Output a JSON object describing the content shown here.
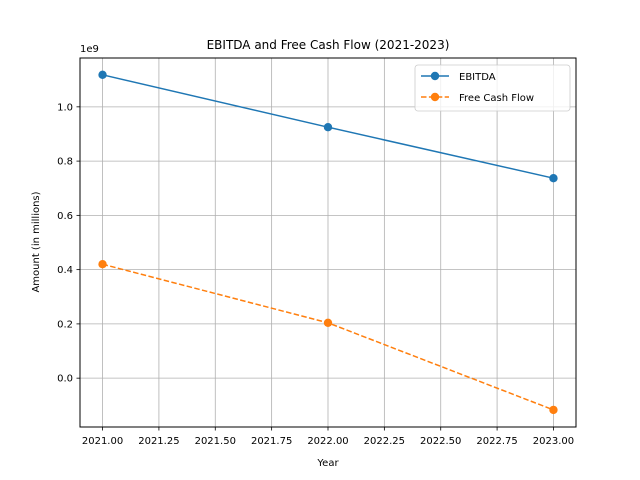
{
  "chart_data": {
    "type": "line",
    "title": "EBITDA and Free Cash Flow (2021-2023)",
    "xlabel": "Year",
    "ylabel": "Amount (in millions)",
    "offset_label": "1e9",
    "x": [
      2021,
      2022,
      2023
    ],
    "xlim": [
      2020.9,
      2023.1
    ],
    "ylim": [
      -0.18,
      1.18
    ],
    "x_ticks": [
      "2021.00",
      "2021.25",
      "2021.50",
      "2021.75",
      "2022.00",
      "2022.25",
      "2022.50",
      "2022.75",
      "2023.00"
    ],
    "x_tick_values": [
      2021.0,
      2021.25,
      2021.5,
      2021.75,
      2022.0,
      2022.25,
      2022.5,
      2022.75,
      2023.0
    ],
    "y_ticks": [
      "0.0",
      "0.2",
      "0.4",
      "0.6",
      "0.8",
      "1.0"
    ],
    "y_tick_values": [
      0.0,
      0.2,
      0.4,
      0.6,
      0.8,
      1.0
    ],
    "grid": true,
    "legend_position": "top-right",
    "series": [
      {
        "name": "EBITDA",
        "values": [
          1.118,
          0.925,
          0.737
        ],
        "color": "#1f77b4",
        "linestyle": "solid",
        "marker": "circle"
      },
      {
        "name": "Free Cash Flow",
        "values": [
          0.42,
          0.204,
          -0.117
        ],
        "color": "#ff7f0e",
        "linestyle": "dashed",
        "marker": "circle"
      }
    ]
  }
}
